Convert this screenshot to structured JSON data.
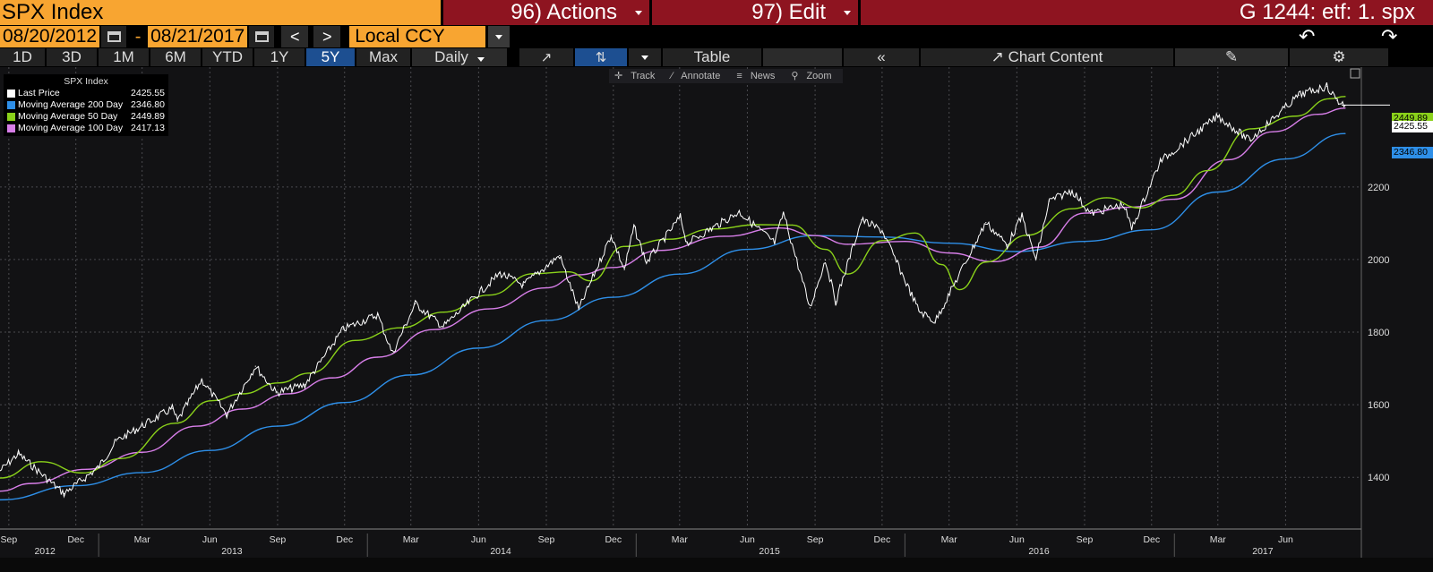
{
  "header": {
    "ticker": "SPX Index",
    "actions": "96) Actions",
    "edit": "97) Edit",
    "graph_title": "G 1244: etf: 1. spx"
  },
  "controls": {
    "start_date": "08/20/2012",
    "end_date": "08/21/2017",
    "dash": "-",
    "prev": "<",
    "next": ">",
    "currency": "Local CCY",
    "undo": "↶",
    "redo": "↷"
  },
  "tabs": {
    "ranges": [
      "1D",
      "3D",
      "1M",
      "6M",
      "YTD",
      "1Y",
      "5Y",
      "Max"
    ],
    "selected": "5Y",
    "period": "Daily",
    "table": "Table",
    "collapse": "«",
    "chart_content": "Chart Content"
  },
  "toolbar": {
    "track": "Track",
    "annotate": "Annotate",
    "news": "News",
    "zoom": "Zoom"
  },
  "legend": {
    "title": "SPX Index",
    "items": [
      {
        "name": "Last Price",
        "value": "2425.55",
        "color": "#ffffff"
      },
      {
        "name": "Moving Average 200 Day",
        "value": "2346.80",
        "color": "#2e8fe8"
      },
      {
        "name": "Moving Average 50 Day",
        "value": "2449.89",
        "color": "#8ad11a"
      },
      {
        "name": "Moving Average 100 Day",
        "value": "2417.13",
        "color": "#d77ee8"
      }
    ]
  },
  "tags": {
    "last": "2425.55",
    "ma200": "2346.80",
    "ma50": "2449.89"
  },
  "chart_data": {
    "type": "line",
    "ylim": [
      1260,
      2530
    ],
    "yticks": [
      1400,
      1600,
      1800,
      2000,
      2200
    ],
    "grid": true,
    "legend_placement": "top-left",
    "x_ticks": [
      "Sep",
      "Dec",
      "Mar",
      "Jun",
      "Sep",
      "Dec",
      "Mar",
      "Jun",
      "Sep",
      "Dec",
      "Mar",
      "Jun",
      "Sep",
      "Dec",
      "Mar",
      "Jun",
      "Sep",
      "Dec",
      "Mar",
      "Jun"
    ],
    "x_tick_dates": [
      "2012-09",
      "2012-12",
      "2013-03",
      "2013-06",
      "2013-09",
      "2013-12",
      "2014-03",
      "2014-06",
      "2014-09",
      "2014-12",
      "2015-03",
      "2015-06",
      "2015-09",
      "2015-12",
      "2016-03",
      "2016-06",
      "2016-09",
      "2016-12",
      "2017-03",
      "2017-06"
    ],
    "year_labels": [
      "2012",
      "2013",
      "2014",
      "2015",
      "2016",
      "2017"
    ],
    "x_range": [
      "2012-08-20",
      "2017-08-21"
    ],
    "series": [
      {
        "name": "Last Price",
        "color": "#ffffff",
        "x": [
          "2012-08-20",
          "2012-09-14",
          "2012-11-15",
          "2012-12-31",
          "2013-01-25",
          "2013-04-11",
          "2013-04-18",
          "2013-05-21",
          "2013-06-24",
          "2013-08-02",
          "2013-08-30",
          "2013-10-08",
          "2013-11-29",
          "2014-01-15",
          "2014-02-04",
          "2014-03-07",
          "2014-04-14",
          "2014-06-30",
          "2014-08-01",
          "2014-09-19",
          "2014-10-15",
          "2014-11-28",
          "2014-12-16",
          "2014-12-29",
          "2015-01-15",
          "2015-03-02",
          "2015-03-11",
          "2015-05-21",
          "2015-07-08",
          "2015-07-20",
          "2015-08-25",
          "2015-09-15",
          "2015-09-29",
          "2015-11-03",
          "2015-12-01",
          "2016-01-20",
          "2016-02-11",
          "2016-04-20",
          "2016-05-19",
          "2016-06-08",
          "2016-06-27",
          "2016-07-15",
          "2016-08-15",
          "2016-09-09",
          "2016-10-24",
          "2016-11-04",
          "2016-12-13",
          "2017-03-01",
          "2017-04-13",
          "2017-06-19",
          "2017-07-27",
          "2017-08-10",
          "2017-08-21"
        ],
        "y": [
          1418,
          1465,
          1355,
          1426,
          1500,
          1590,
          1555,
          1669,
          1573,
          1706,
          1633,
          1655,
          1808,
          1848,
          1741,
          1878,
          1815,
          1962,
          1930,
          2011,
          1862,
          2067,
          1972,
          2090,
          1992,
          2117,
          2045,
          2131,
          2046,
          2128,
          1867,
          1999,
          1884,
          2109,
          2080,
          1859,
          1829,
          2102,
          2040,
          2119,
          2000,
          2161,
          2190,
          2127,
          2151,
          2085,
          2271,
          2395,
          2328,
          2453,
          2477,
          2438,
          2425
        ]
      },
      {
        "name": "Moving Average 50 Day",
        "color": "#8ad11a",
        "x": [
          "2012-08-20",
          "2012-10-15",
          "2012-12-10",
          "2013-02-01",
          "2013-04-15",
          "2013-06-03",
          "2013-07-15",
          "2013-09-02",
          "2013-10-15",
          "2013-12-15",
          "2014-02-15",
          "2014-04-15",
          "2014-06-15",
          "2014-08-15",
          "2014-10-01",
          "2014-11-01",
          "2014-12-15",
          "2015-02-15",
          "2015-04-15",
          "2015-06-15",
          "2015-08-01",
          "2015-09-15",
          "2015-10-15",
          "2015-12-01",
          "2016-01-15",
          "2016-02-20",
          "2016-03-15",
          "2016-04-20",
          "2016-06-15",
          "2016-08-15",
          "2016-10-01",
          "2016-11-15",
          "2016-12-31",
          "2017-02-15",
          "2017-04-15",
          "2017-06-15",
          "2017-07-31",
          "2017-08-21"
        ],
        "y": [
          1398,
          1443,
          1412,
          1452,
          1549,
          1611,
          1630,
          1660,
          1687,
          1777,
          1812,
          1855,
          1902,
          1961,
          1966,
          1941,
          2036,
          2056,
          2084,
          2096,
          2095,
          2028,
          1960,
          2052,
          2073,
          1986,
          1917,
          1993,
          2067,
          2140,
          2170,
          2142,
          2177,
          2245,
          2360,
          2395,
          2443,
          2449
        ]
      },
      {
        "name": "Moving Average 100 Day",
        "color": "#d77ee8",
        "x": [
          "2012-08-20",
          "2012-10-01",
          "2012-12-15",
          "2013-03-01",
          "2013-05-15",
          "2013-07-15",
          "2013-09-15",
          "2013-11-15",
          "2014-01-15",
          "2014-04-01",
          "2014-06-15",
          "2014-09-01",
          "2014-10-15",
          "2014-12-01",
          "2015-02-01",
          "2015-05-01",
          "2015-07-15",
          "2015-09-01",
          "2015-10-15",
          "2016-01-01",
          "2016-03-01",
          "2016-05-01",
          "2016-07-01",
          "2016-09-01",
          "2016-11-01",
          "2017-01-01",
          "2017-03-15",
          "2017-05-15",
          "2017-07-15",
          "2017-08-21"
        ],
        "y": [
          1362,
          1383,
          1422,
          1469,
          1541,
          1588,
          1630,
          1674,
          1731,
          1807,
          1864,
          1922,
          1958,
          1978,
          2025,
          2064,
          2087,
          2066,
          2042,
          2050,
          2018,
          1994,
          2034,
          2128,
          2144,
          2166,
          2275,
          2352,
          2400,
          2417
        ]
      },
      {
        "name": "Moving Average 200 Day",
        "color": "#2e8fe8",
        "x": [
          "2012-08-20",
          "2012-12-01",
          "2013-03-01",
          "2013-06-01",
          "2013-09-01",
          "2013-12-01",
          "2014-03-01",
          "2014-06-01",
          "2014-09-01",
          "2014-12-01",
          "2015-03-01",
          "2015-06-01",
          "2015-09-01",
          "2015-12-01",
          "2016-03-01",
          "2016-06-01",
          "2016-09-01",
          "2016-12-01",
          "2017-03-01",
          "2017-06-01",
          "2017-08-21"
        ],
        "y": [
          1338,
          1377,
          1413,
          1474,
          1541,
          1606,
          1682,
          1756,
          1832,
          1896,
          1960,
          2028,
          2066,
          2062,
          2045,
          2022,
          2050,
          2082,
          2186,
          2277,
          2347
        ]
      }
    ]
  }
}
